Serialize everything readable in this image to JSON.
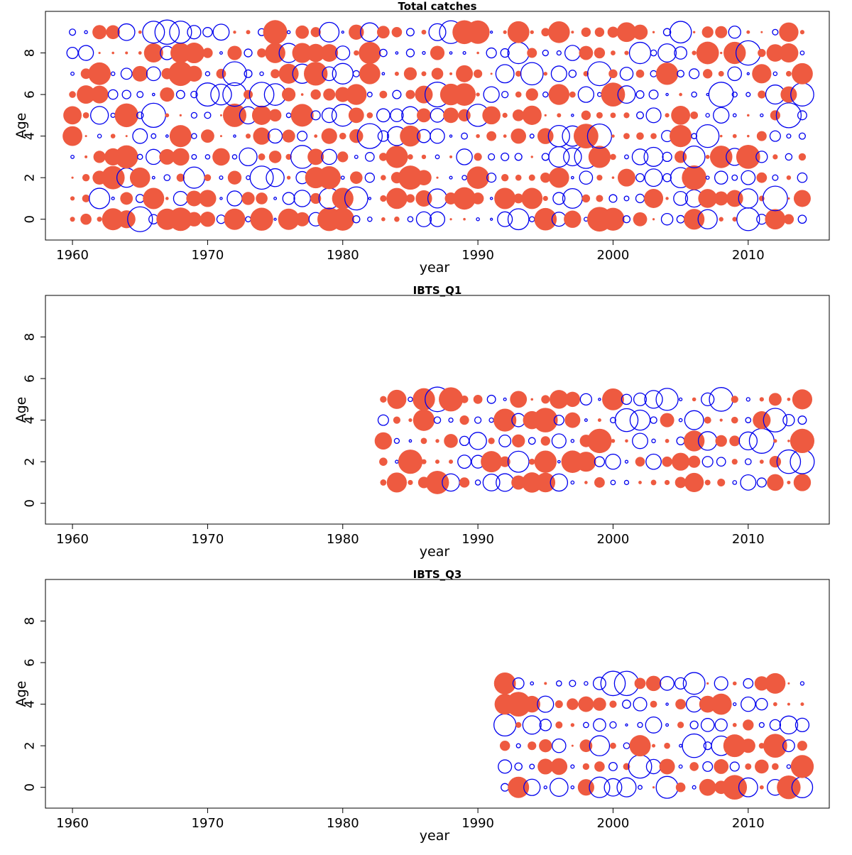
{
  "panels": [
    {
      "title": "Total catches",
      "xlabel": "year",
      "ylabel": "Age"
    },
    {
      "title": "IBTS_Q1",
      "xlabel": "year",
      "ylabel": "Age"
    },
    {
      "title": "IBTS_Q3",
      "xlabel": "year",
      "ylabel": "Age"
    }
  ],
  "chart_data": [
    {
      "type": "scatter",
      "encoding": "bubble plot of residuals; filled = positive, open = negative; circle area ~ magnitude",
      "title": "Total catches",
      "xlabel": "year",
      "ylabel": "Age",
      "xlim": [
        1958,
        2016
      ],
      "ylim": [
        -1,
        10
      ],
      "xticks": [
        1960,
        1970,
        1980,
        1990,
        2000,
        2010
      ],
      "yticks": [
        0,
        2,
        4,
        6,
        8
      ],
      "years": [
        1960,
        2014
      ],
      "ages": [
        0,
        9
      ],
      "grid": false,
      "series_colors": {
        "positive": "#EE5A40",
        "negative": "#0000EE"
      },
      "values_note": "residual value per (year, age) cell, years 1960-2014, ages 0-9"
    },
    {
      "type": "scatter",
      "title": "IBTS_Q1",
      "xlabel": "year",
      "ylabel": "Age",
      "xlim": [
        1958,
        2016
      ],
      "ylim": [
        -1,
        10
      ],
      "xticks": [
        1960,
        1970,
        1980,
        1990,
        2000,
        2010
      ],
      "yticks": [
        0,
        2,
        4,
        6,
        8
      ],
      "years": [
        1983,
        2014
      ],
      "ages": [
        1,
        5
      ],
      "grid": false,
      "series_colors": {
        "positive": "#EE5A40",
        "negative": "#0000EE"
      }
    },
    {
      "type": "scatter",
      "title": "IBTS_Q3",
      "xlabel": "year",
      "ylabel": "Age",
      "xlim": [
        1958,
        2016
      ],
      "ylim": [
        -1,
        10
      ],
      "xticks": [
        1960,
        1970,
        1980,
        1990,
        2000,
        2010
      ],
      "yticks": [
        0,
        2,
        4,
        6,
        8
      ],
      "years": [
        1992,
        2014
      ],
      "ages": [
        0,
        5
      ],
      "grid": false,
      "series_colors": {
        "positive": "#EE5A40",
        "negative": "#0000EE"
      }
    }
  ]
}
